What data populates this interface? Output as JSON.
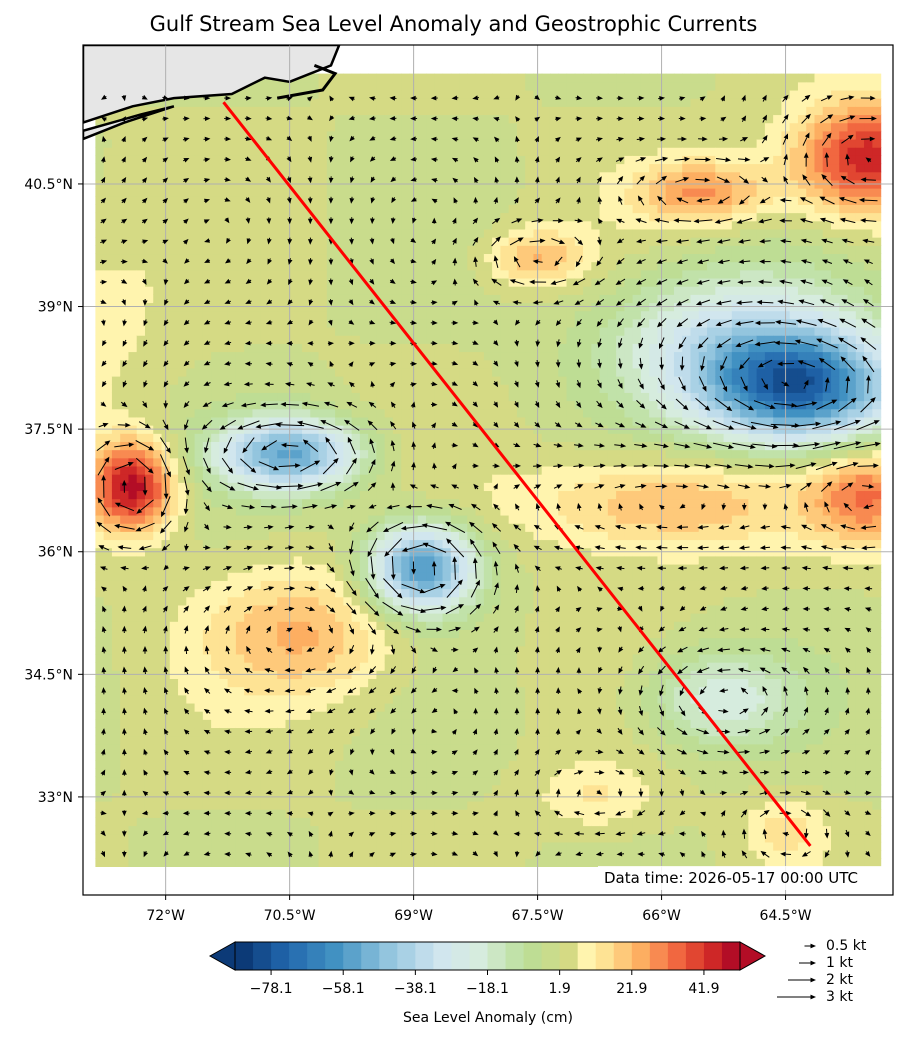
{
  "title": "Gulf Stream Sea Level Anomaly and Geostrophic Currents",
  "data_time": "Data time: 2026-05-17 00:00 UTC",
  "colorbar": {
    "label": "Sea Level Anomaly (cm)",
    "ticks": [
      "−78.1",
      "−58.1",
      "−38.1",
      "−18.1",
      "1.9",
      "21.9",
      "41.9"
    ],
    "tick_values": [
      -78.1,
      -58.1,
      -38.1,
      -18.1,
      1.9,
      21.9,
      41.9
    ],
    "range": [
      -88.1,
      51.9
    ],
    "extend": "both",
    "colormap": "RdYlBu_r"
  },
  "quiver_key": [
    "0.5 kt",
    "1 kt",
    "2 kt",
    "3 kt"
  ],
  "quiver_key_values": [
    0.5,
    1,
    2,
    3
  ],
  "colors": {
    "track": "#ff0000",
    "land": "#e6e6e6",
    "coast": "#000000",
    "grid": "#b0b0b0"
  },
  "chart_data": {
    "type": "heatmap",
    "title": "Gulf Stream Sea Level Anomaly and Geostrophic Currents",
    "xlabel": "",
    "ylabel": "",
    "xlim": [
      -73,
      -63.2
    ],
    "ylim": [
      31.8,
      42.2
    ],
    "x_ticks": [
      -72,
      -70.5,
      -69,
      -67.5,
      -66,
      -64.5
    ],
    "x_tick_labels": [
      "72°W",
      "70.5°W",
      "69°W",
      "67.5°W",
      "66°W",
      "64.5°W"
    ],
    "y_ticks": [
      33,
      34.5,
      36,
      37.5,
      39,
      40.5
    ],
    "y_tick_labels": [
      "33°N",
      "34.5°N",
      "36°N",
      "37.5°N",
      "39°N",
      "40.5°N"
    ],
    "grid": true,
    "background_sla": 2,
    "eddies": [
      {
        "lon": -64.3,
        "lat": 38.0,
        "amp": -70,
        "rx": 1.2,
        "ry": 0.7
      },
      {
        "lon": -65.2,
        "lat": 38.6,
        "amp": -30,
        "rx": 1.5,
        "ry": 0.9
      },
      {
        "lon": -70.5,
        "lat": 37.2,
        "amp": -55,
        "rx": 0.85,
        "ry": 0.45
      },
      {
        "lon": -68.9,
        "lat": 35.8,
        "amp": -62,
        "rx": 0.65,
        "ry": 0.55
      },
      {
        "lon": -72.4,
        "lat": 36.8,
        "amp": 48,
        "rx": 0.5,
        "ry": 0.55
      },
      {
        "lon": -63.5,
        "lat": 40.8,
        "amp": 45,
        "rx": 0.9,
        "ry": 0.7
      },
      {
        "lon": -65.5,
        "lat": 40.4,
        "amp": 25,
        "rx": 0.8,
        "ry": 0.4
      },
      {
        "lon": -67.5,
        "lat": 39.6,
        "amp": 20,
        "rx": 0.6,
        "ry": 0.35
      },
      {
        "lon": -66.0,
        "lat": 36.6,
        "amp": 22,
        "rx": 1.6,
        "ry": 0.6
      },
      {
        "lon": -63.5,
        "lat": 36.7,
        "amp": 28,
        "rx": 0.7,
        "ry": 0.6
      },
      {
        "lon": -70.3,
        "lat": 35.0,
        "amp": 20,
        "rx": 1.2,
        "ry": 0.8
      },
      {
        "lon": -65.3,
        "lat": 34.2,
        "amp": -25,
        "rx": 0.9,
        "ry": 0.6
      },
      {
        "lon": -73.0,
        "lat": 38.9,
        "amp": 8,
        "rx": 1.0,
        "ry": 1.2
      },
      {
        "lon": -66.8,
        "lat": 33.0,
        "amp": 10,
        "rx": 0.7,
        "ry": 0.4
      },
      {
        "lon": -64.5,
        "lat": 32.6,
        "amp": 12,
        "rx": 0.5,
        "ry": 0.4
      }
    ],
    "track": {
      "start": {
        "lon": -71.3,
        "lat": 41.5
      },
      "end": {
        "lon": -64.2,
        "lat": 32.4
      }
    }
  }
}
